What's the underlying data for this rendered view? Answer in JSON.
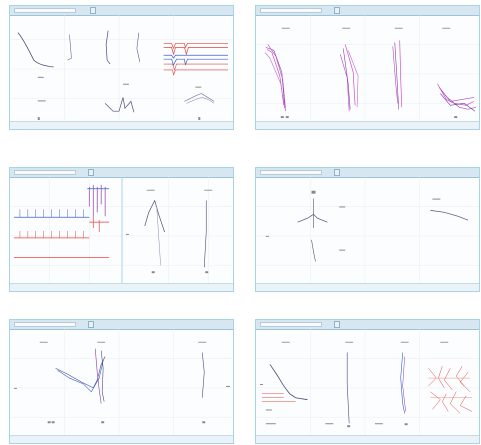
{
  "windows": [
    {
      "title": "",
      "button": "",
      "status_left": "",
      "status_right": ""
    },
    {
      "title": "",
      "button": "",
      "status_left": "",
      "status_right": ""
    },
    {
      "title": "",
      "button": "",
      "status_left": "",
      "status_right": ""
    },
    {
      "title": "",
      "button": "",
      "status_left": "",
      "status_right": ""
    },
    {
      "title": "",
      "button": "",
      "status_left": "",
      "status_right": ""
    },
    {
      "title": "",
      "button": "",
      "status_left": "",
      "status_right": ""
    }
  ],
  "colors": {
    "window_border": "#a9d4e6",
    "titlebar": "#d7e7f2",
    "trace_dark": "#4a4a7a",
    "trace_purple": "#8a3aa8",
    "trace_magenta": "#d12fc7",
    "trace_blue": "#3d5bd6",
    "trace_red": "#e4453d",
    "grid": "#e3ebf0"
  }
}
